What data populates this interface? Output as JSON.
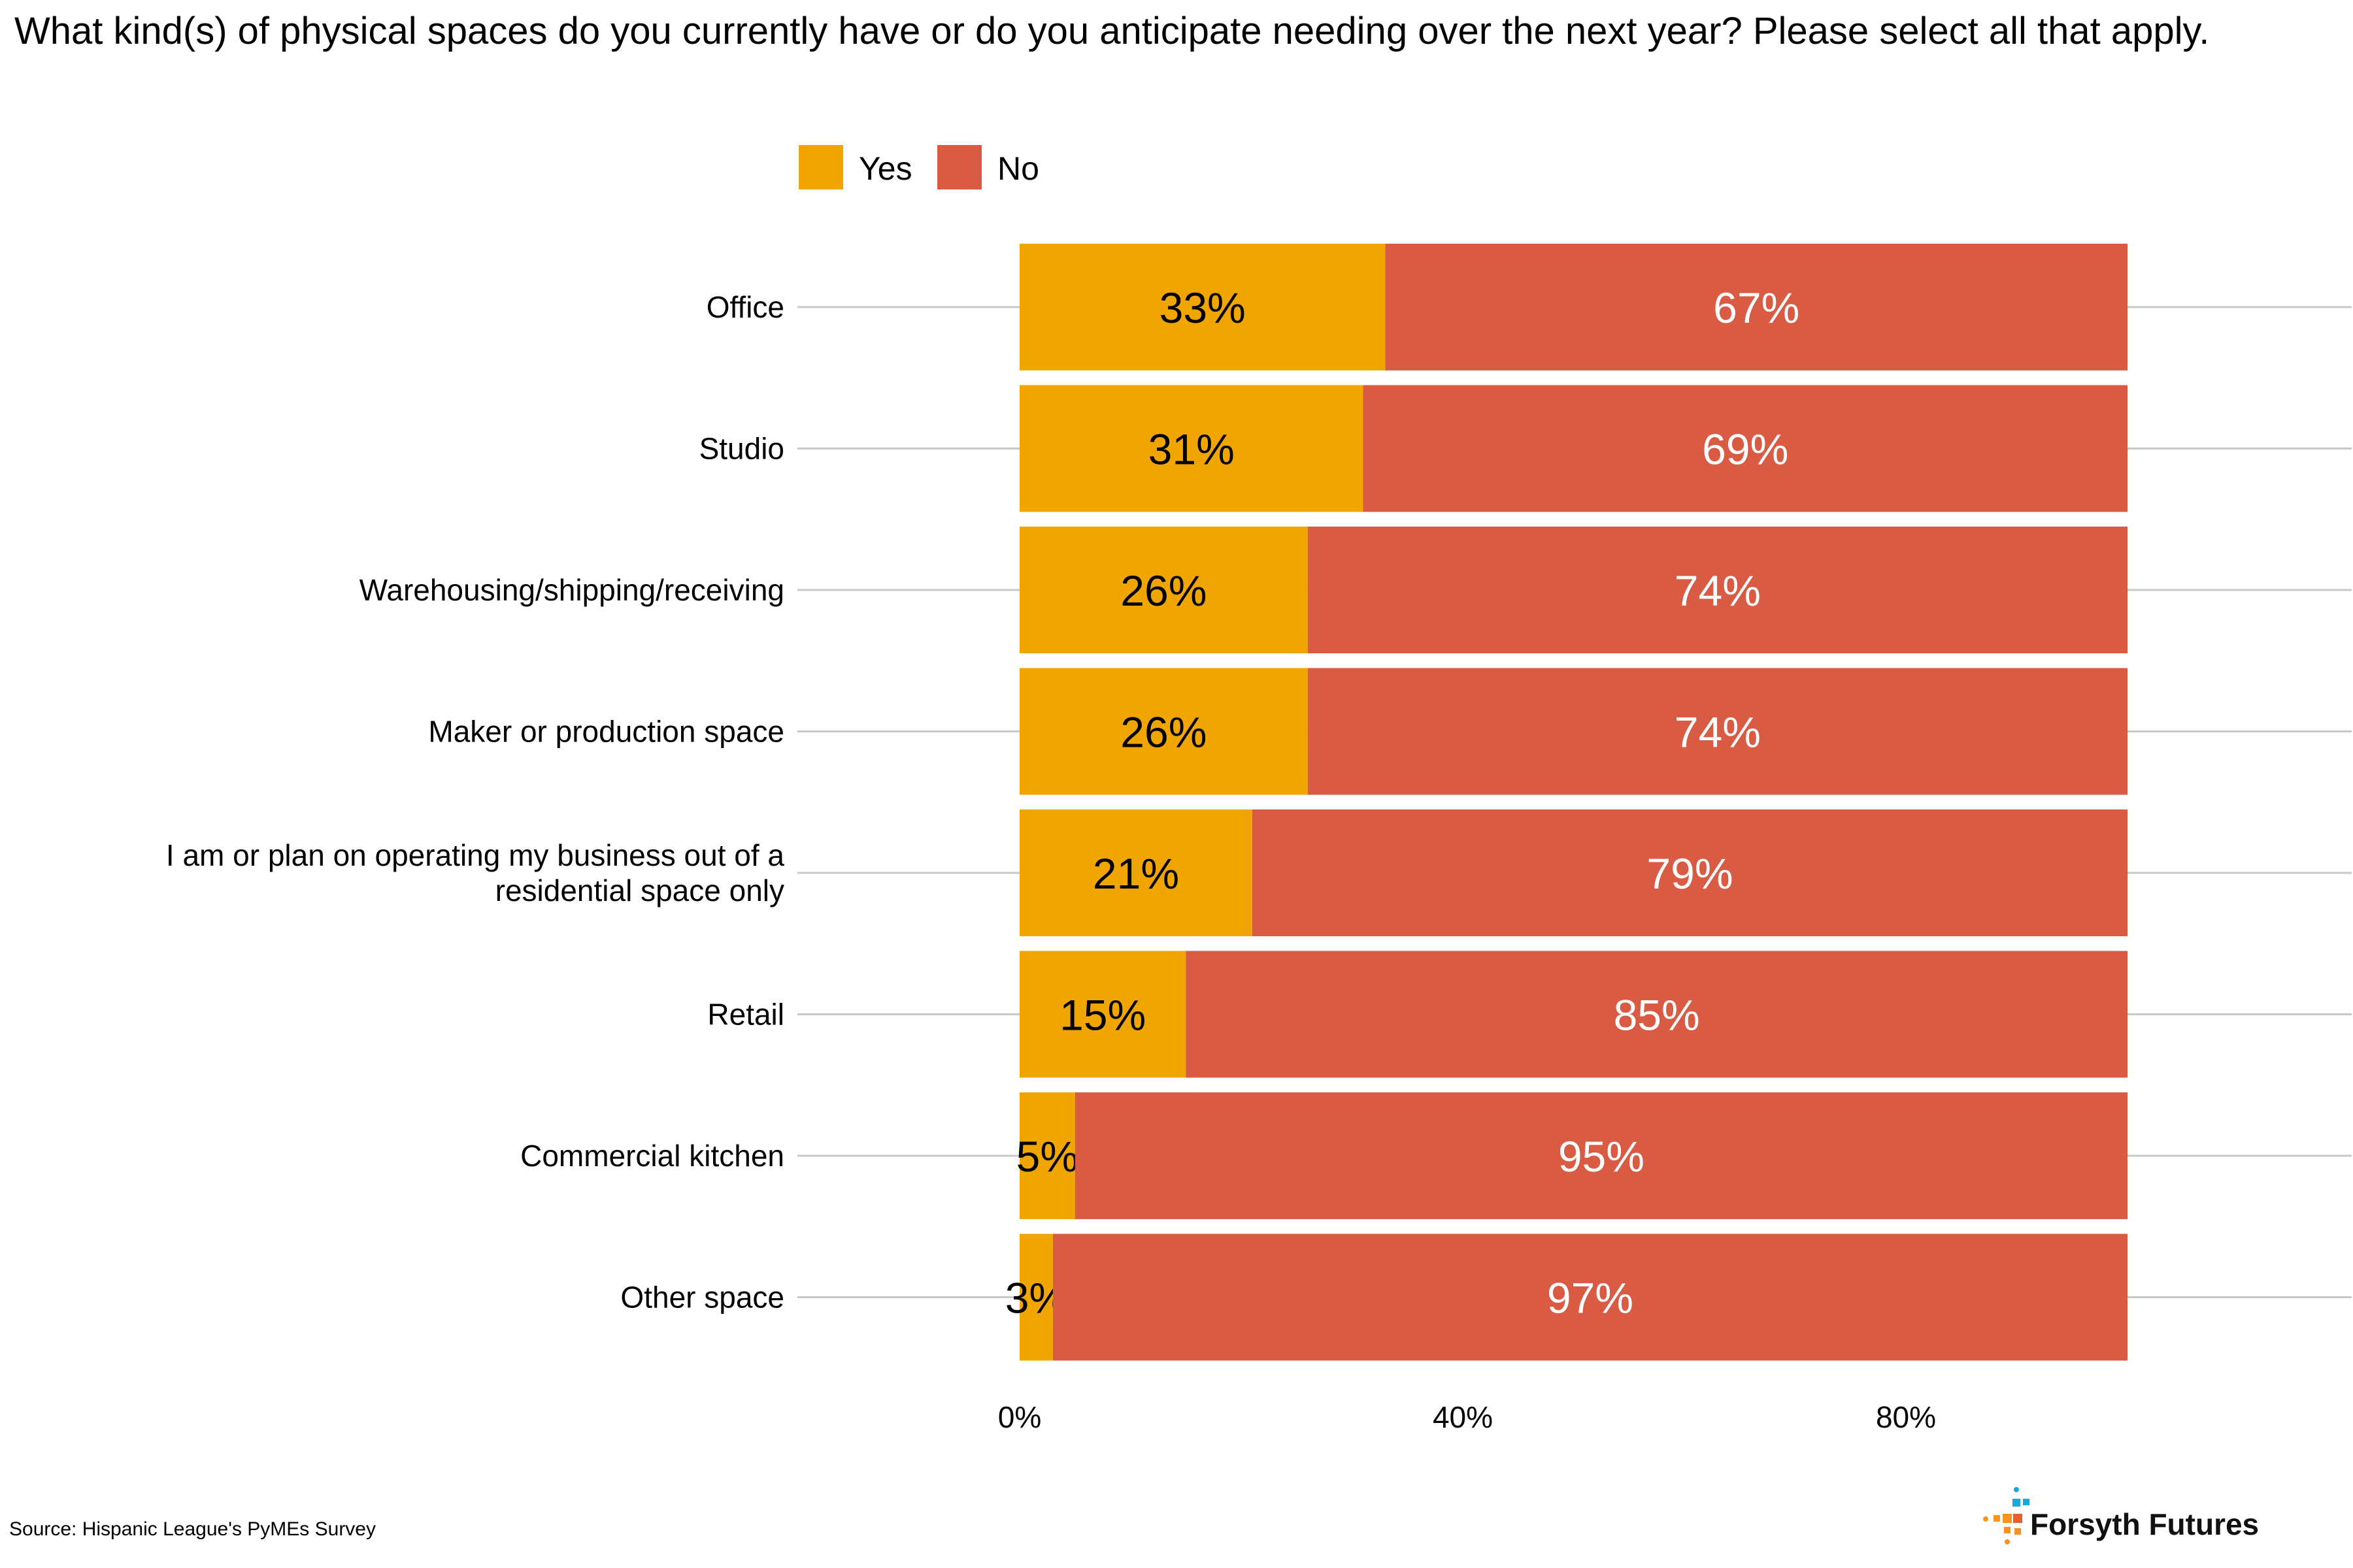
{
  "chart_data": {
    "type": "bar",
    "stacked": true,
    "orientation": "horizontal",
    "title": "What kind(s) of physical spaces do you currently have or do you anticipate needing over the next year? Please select all that apply.",
    "categories": [
      "Office",
      "Studio",
      "Warehousing/shipping/receiving",
      "Maker or production space",
      "I am or plan on operating my business out of a residential space only",
      "Retail",
      "Commercial kitchen",
      "Other space"
    ],
    "series": [
      {
        "name": "Yes",
        "color": "#F0A500",
        "values": [
          33,
          31,
          26,
          26,
          21,
          15,
          5,
          3
        ],
        "labels": [
          "33%",
          "31%",
          "26%",
          "26%",
          "21%",
          "15%",
          "5%",
          "3%"
        ]
      },
      {
        "name": "No",
        "color": "#D95B43",
        "values": [
          67,
          69,
          74,
          74,
          79,
          85,
          95,
          97
        ],
        "labels": [
          "67%",
          "69%",
          "74%",
          "74%",
          "79%",
          "85%",
          "95%",
          "97%"
        ]
      }
    ],
    "xticks": [
      "0%",
      "40%",
      "80%"
    ],
    "xtick_values": [
      0,
      40,
      80
    ],
    "xlim": [
      0,
      100
    ],
    "legend": "top",
    "grid": "horizontal-lines"
  },
  "source": "Source: Hispanic League's PyMEs Survey",
  "brand": {
    "name": "Forsyth Futures",
    "icon": "forsyth-futures-logo-icon"
  }
}
